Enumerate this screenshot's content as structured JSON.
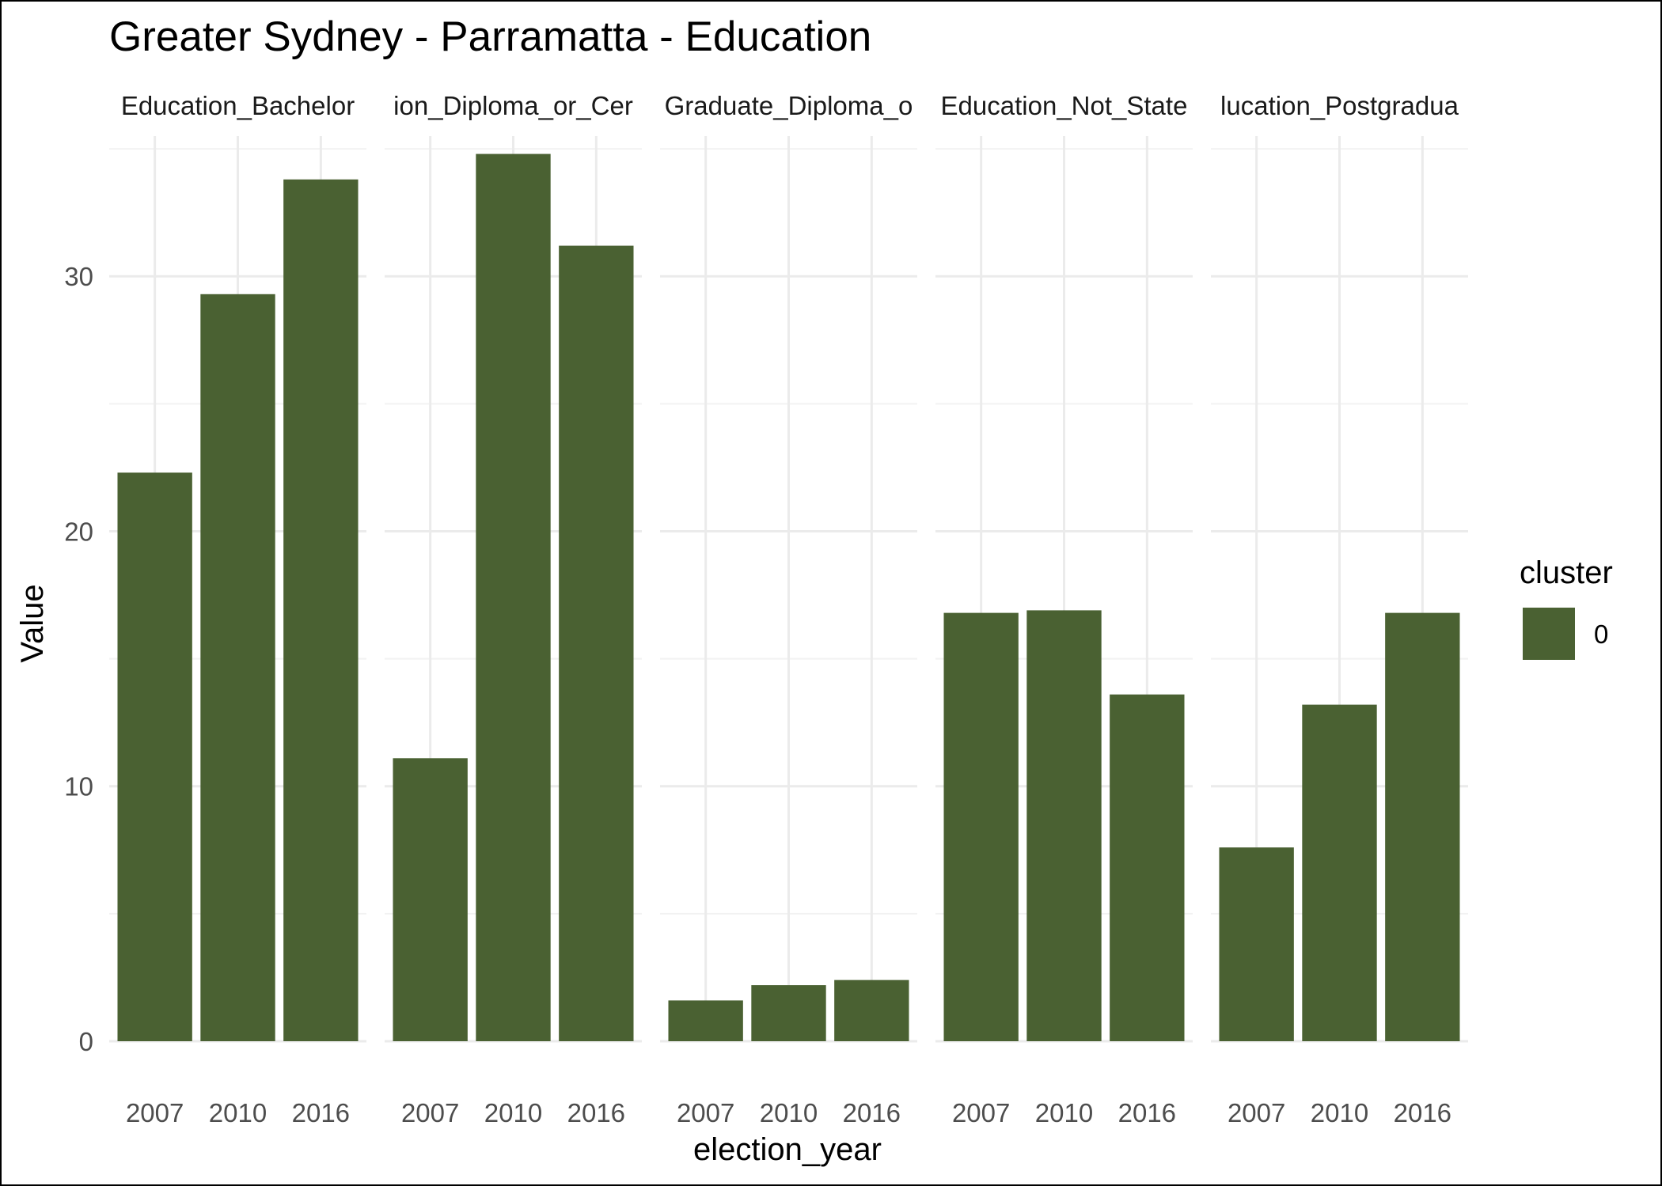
{
  "chart_data": {
    "type": "bar",
    "title": "Greater Sydney - Parramatta - Education",
    "xlabel": "election_year",
    "ylabel": "Value",
    "ylim": [
      0,
      35.5
    ],
    "y_ticks": [
      0,
      10,
      20,
      30
    ],
    "categories": [
      "2007",
      "2010",
      "2016"
    ],
    "grid": true,
    "legend": {
      "title": "cluster",
      "position": "right",
      "entries": [
        {
          "label": "0",
          "color": "#4a6132"
        }
      ]
    },
    "bar_color": "#4a6132",
    "facets": [
      {
        "label": "Education_Bachelor",
        "values": [
          22.3,
          29.3,
          33.8
        ]
      },
      {
        "label": "ion_Diploma_or_Cer",
        "values": [
          11.1,
          34.8,
          31.2
        ]
      },
      {
        "label": "Graduate_Diploma_o",
        "values": [
          1.6,
          2.2,
          2.4
        ]
      },
      {
        "label": "Education_Not_State",
        "values": [
          16.8,
          16.9,
          13.6
        ]
      },
      {
        "label": "lucation_Postgradua",
        "values": [
          7.6,
          13.2,
          16.8
        ]
      }
    ]
  }
}
